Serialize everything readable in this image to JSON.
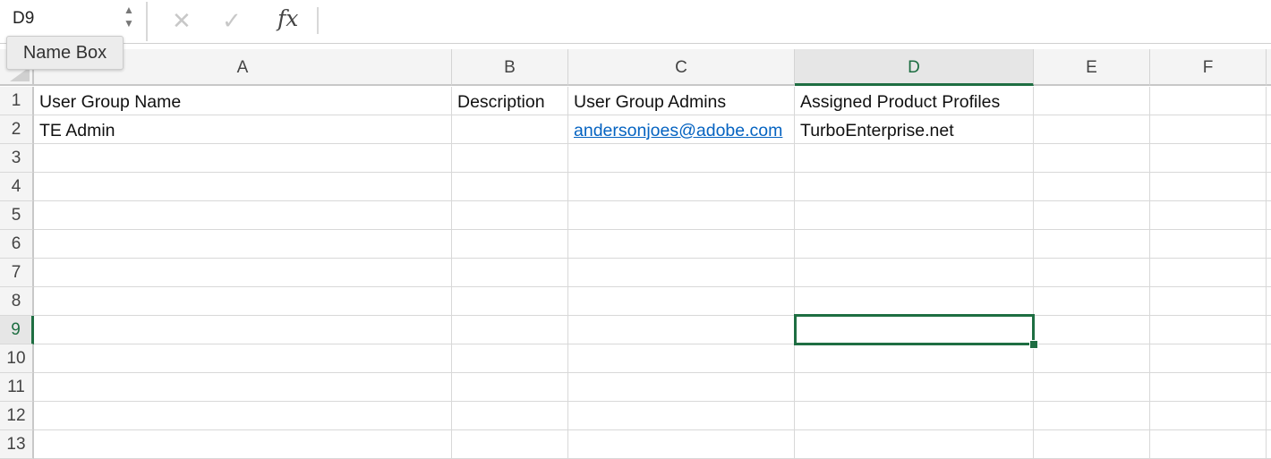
{
  "name_box": {
    "value": "D9",
    "tooltip": "Name Box"
  },
  "formula_bar": {
    "cancel_icon": "x-icon",
    "enter_icon": "check-icon",
    "fx_label": "fx",
    "value": ""
  },
  "columns": [
    "A",
    "B",
    "C",
    "D",
    "E",
    "F"
  ],
  "rows": [
    "1",
    "2",
    "3",
    "4",
    "5",
    "6",
    "7",
    "8",
    "9",
    "10",
    "11",
    "12",
    "13"
  ],
  "selected_cell": {
    "column": "D",
    "row": "9"
  },
  "cells": {
    "A1": "User Group Name",
    "B1": "Description",
    "C1": "User Group Admins",
    "D1": "Assigned Product Profiles",
    "A2": "TE Admin",
    "C2": "andersonjoes@adobe.com",
    "D2": "TurboEnterprise.net"
  },
  "link_cells": [
    "C2"
  ],
  "colors": {
    "accent": "#1e6e42",
    "link": "#0563c1"
  }
}
